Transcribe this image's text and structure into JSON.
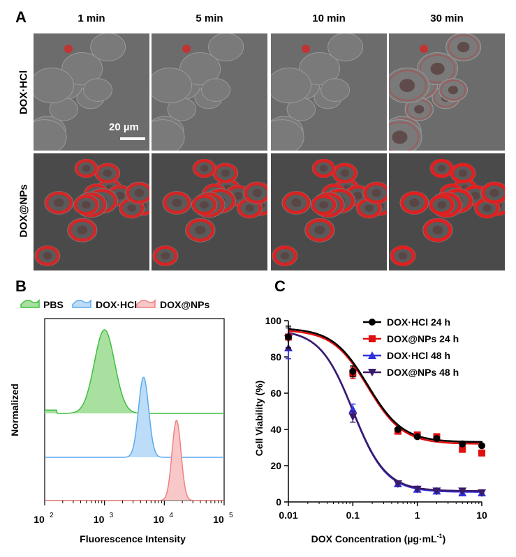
{
  "panel_a": {
    "letter": "A",
    "timepoints": [
      "1 min",
      "5 min",
      "10 min",
      "30 min"
    ],
    "rows": [
      "DOX·HCl",
      "DOX@NPs"
    ],
    "scale_bar": "20 µm",
    "red_intensity": {
      "DOX·HCl": [
        0.05,
        0.05,
        0.12,
        0.35
      ],
      "DOX@NPs": [
        0.9,
        0.92,
        0.95,
        1.0
      ]
    }
  },
  "panel_b": {
    "letter": "B",
    "ylabel": "Normalized",
    "xlabel": "Fluorescence Intensity",
    "legend": [
      {
        "name": "PBS",
        "color": "#3fbf3f"
      },
      {
        "name": "DOX·HCl",
        "color": "#5aaaf0"
      },
      {
        "name": "DOX@NPs",
        "color": "#f08080"
      }
    ],
    "tick_base": "10",
    "tick_exponents": [
      "2",
      "3",
      "4",
      "5"
    ]
  },
  "panel_c": {
    "letter": "C",
    "legend": [
      "DOX·HCl 24 h",
      "DOX@NPs 24 h",
      "DOX·HCl 48 h",
      "DOX@NPs 48 h"
    ]
  },
  "chart_data": [
    {
      "type": "area",
      "xscale": "log",
      "xlim": [
        100,
        100000
      ],
      "xlabel": "Fluorescence Intensity",
      "ylabel": "Normalized",
      "series": [
        {
          "name": "PBS",
          "peak_x": 1000,
          "color": "#3fbf3f"
        },
        {
          "name": "DOX·HCl",
          "peak_x": 4500,
          "color": "#5aaaf0"
        },
        {
          "name": "DOX@NPs",
          "peak_x": 16000,
          "color": "#f08080"
        }
      ]
    },
    {
      "type": "scatter",
      "xscale": "log",
      "xlim": [
        0.01,
        10
      ],
      "ylim": [
        0,
        100
      ],
      "xticks": [
        "0.01",
        "0.1",
        "1",
        "10"
      ],
      "yticks": [
        "0",
        "20",
        "40",
        "60",
        "80",
        "100"
      ],
      "xlabel": "DOX Concentration (µg·mL⁻¹)",
      "xlabel_main": "DOX Concentration (µg·mL",
      "xlabel_sup": "-1",
      "xlabel_close": ")",
      "ylabel": "Cell Viability (%)",
      "x": [
        0.01,
        0.1,
        0.5,
        1,
        2,
        5,
        10
      ],
      "series": [
        {
          "name": "DOX·HCl 24 h",
          "color": "#000000",
          "marker": "circle",
          "values": [
            91,
            72,
            40,
            36,
            35,
            32,
            31
          ],
          "fit": {
            "top": 96,
            "bottom": 33,
            "ec50": 0.17,
            "hill": 1.6
          }
        },
        {
          "name": "DOX@NPs 24 h",
          "color": "#e01010",
          "marker": "square",
          "values": [
            91,
            71,
            39,
            37,
            36,
            29,
            27
          ],
          "fit": {
            "top": 95,
            "bottom": 32,
            "ec50": 0.17,
            "hill": 1.6
          }
        },
        {
          "name": "DOX·HCl 48 h",
          "color": "#3030e0",
          "marker": "triangle-up",
          "values": [
            85,
            51,
            10,
            7,
            6,
            5,
            5
          ],
          "fit": {
            "top": 95,
            "bottom": 5.5,
            "ec50": 0.1,
            "hill": 1.7
          }
        },
        {
          "name": "DOX@NPs 48 h",
          "color": "#3a1a6a",
          "marker": "triangle-down",
          "values": [
            90,
            47,
            10,
            7,
            6,
            6,
            5
          ],
          "fit": {
            "top": 95,
            "bottom": 6,
            "ec50": 0.1,
            "hill": 1.7
          }
        }
      ]
    }
  ]
}
